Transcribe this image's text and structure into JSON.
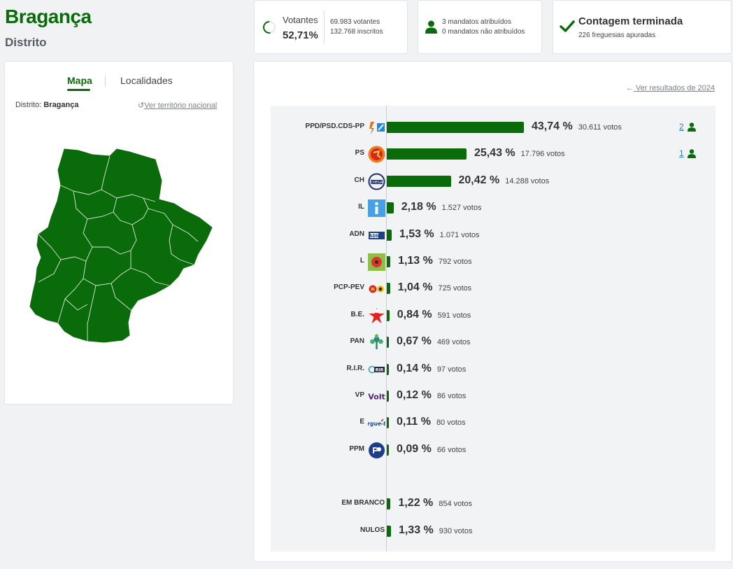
{
  "header": {
    "title": "Bragança",
    "subtitle": "Distrito"
  },
  "stats": {
    "votantes_label": "Votantes",
    "votantes_pct": "52,71%",
    "votantes_count": "69.983 votantes",
    "inscritos": "132.768 inscritos",
    "mandatos_atribuidos": "3 mandatos atribuídos",
    "mandatos_nao_atribuidos": "0 mandatos não atribuídos",
    "contagem_title": "Contagem terminada",
    "freguesias": "226 freguesias apuradas"
  },
  "map_panel": {
    "tab_mapa": "Mapa",
    "tab_localidades": "Localidades",
    "distrito_label": "Distrito:",
    "distrito_value": "Bragança",
    "ver_nacional": "Ver território nacional",
    "map_color": "#0a6b0a"
  },
  "results": {
    "ver_2024": "Ver resultados de 2024",
    "bar_color": "#0a6b0a",
    "parties": [
      {
        "name": "PPD/PSD.CDS-PP",
        "logo": "psd-cds-logo",
        "pct_value": 43.74,
        "pct": "43,74 %",
        "votes": "30.611 votos",
        "seats": "2"
      },
      {
        "name": "PS",
        "logo": "ps-logo",
        "pct_value": 25.43,
        "pct": "25,43 %",
        "votes": "17.796 votos",
        "seats": "1"
      },
      {
        "name": "CH",
        "logo": "chega-logo",
        "pct_value": 20.42,
        "pct": "20,42 %",
        "votes": "14.288 votos",
        "seats": ""
      },
      {
        "name": "IL",
        "logo": "il-logo",
        "pct_value": 2.18,
        "pct": "2,18 %",
        "votes": "1.527 votos",
        "seats": ""
      },
      {
        "name": "ADN",
        "logo": "adn-logo",
        "pct_value": 1.53,
        "pct": "1,53 %",
        "votes": "1.071 votos",
        "seats": ""
      },
      {
        "name": "L",
        "logo": "livre-logo",
        "pct_value": 1.13,
        "pct": "1,13 %",
        "votes": "792 votos",
        "seats": ""
      },
      {
        "name": "PCP-PEV",
        "logo": "cdu-logo",
        "pct_value": 1.04,
        "pct": "1,04 %",
        "votes": "725 votos",
        "seats": ""
      },
      {
        "name": "B.E.",
        "logo": "be-logo",
        "pct_value": 0.84,
        "pct": "0,84 %",
        "votes": "591 votos",
        "seats": ""
      },
      {
        "name": "PAN",
        "logo": "pan-logo",
        "pct_value": 0.67,
        "pct": "0,67 %",
        "votes": "469 votos",
        "seats": ""
      },
      {
        "name": "R.I.R.",
        "logo": "rir-logo",
        "pct_value": 0.14,
        "pct": "0,14 %",
        "votes": "97 votos",
        "seats": ""
      },
      {
        "name": "VP",
        "logo": "volt-logo",
        "pct_value": 0.12,
        "pct": "0,12 %",
        "votes": "86 votos",
        "seats": ""
      },
      {
        "name": "E",
        "logo": "ergue-te-logo",
        "pct_value": 0.11,
        "pct": "0,11 %",
        "votes": "80 votos",
        "seats": ""
      },
      {
        "name": "PPM",
        "logo": "ppm-logo",
        "pct_value": 0.09,
        "pct": "0,09 %",
        "votes": "66 votos",
        "seats": ""
      }
    ],
    "others": [
      {
        "name": "EM BRANCO",
        "pct_value": 1.22,
        "pct": "1,22 %",
        "votes": "854 votos"
      },
      {
        "name": "NULOS",
        "pct_value": 1.33,
        "pct": "1,33 %",
        "votes": "930 votos"
      }
    ]
  }
}
